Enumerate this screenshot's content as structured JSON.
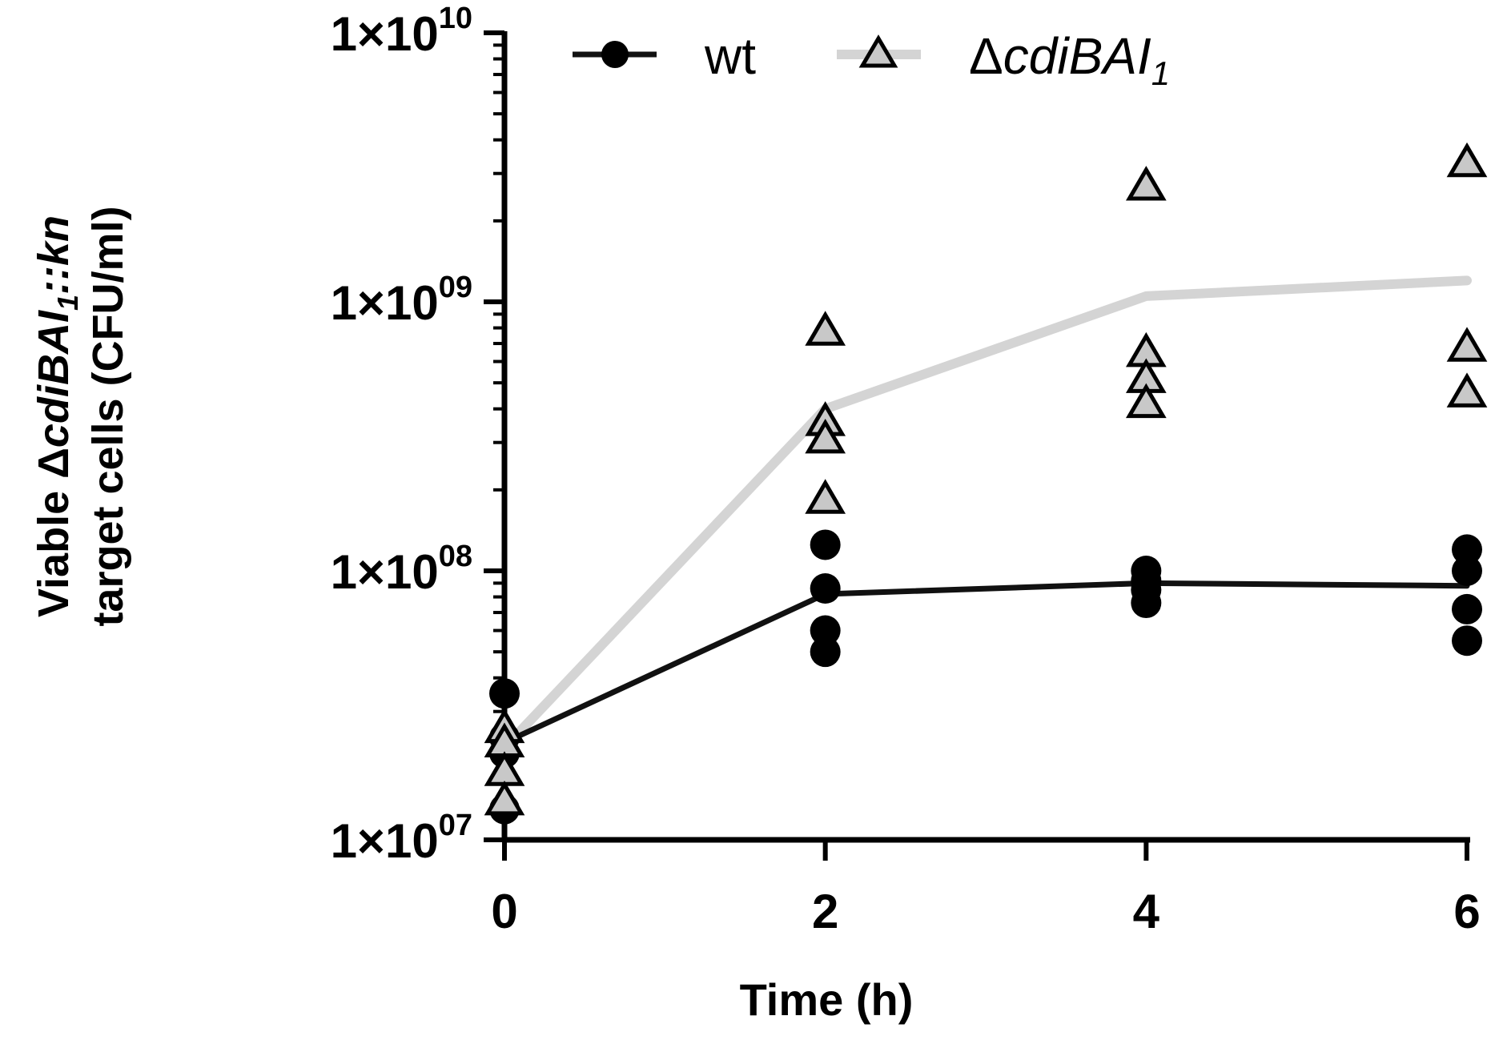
{
  "chart_data": {
    "type": "scatter",
    "y_scale": "log",
    "ylim": [
      10000000,
      10000000000
    ],
    "xlim": [
      0,
      6
    ],
    "x_ticks": [
      0,
      2,
      4,
      6
    ],
    "x_tick_labels": [
      "0",
      "2",
      "4",
      "6"
    ],
    "y_ticks": [
      10000000,
      100000000,
      1000000000,
      10000000000
    ],
    "y_tick_labels": [
      {
        "mantissa": "1×10",
        "exponent": "07"
      },
      {
        "mantissa": "1×10",
        "exponent": "08"
      },
      {
        "mantissa": "1×10",
        "exponent": "09"
      },
      {
        "mantissa": "1×10",
        "exponent": "10"
      }
    ],
    "xlabel": "Time (h)",
    "ylabel": {
      "line1_prefix": "Viable Δ",
      "line1_italic": "cdiBAI",
      "line1_sub": "1",
      "line1_italic2": "::kn",
      "line2": "target cells (CFU/ml)"
    },
    "legend_position": "top",
    "series": [
      {
        "name": "wt",
        "marker": "circle",
        "color": "#000000",
        "line_color": "#111111",
        "mean": [
          {
            "x": 0,
            "y": 23000000
          },
          {
            "x": 2,
            "y": 82000000
          },
          {
            "x": 4,
            "y": 90000000
          },
          {
            "x": 6,
            "y": 88000000
          }
        ],
        "points": [
          {
            "x": 0,
            "y": 35000000
          },
          {
            "x": 0,
            "y": 24000000
          },
          {
            "x": 0,
            "y": 21000000
          },
          {
            "x": 0,
            "y": 13000000
          },
          {
            "x": 2,
            "y": 125000000
          },
          {
            "x": 2,
            "y": 86000000
          },
          {
            "x": 2,
            "y": 60000000
          },
          {
            "x": 2,
            "y": 50000000
          },
          {
            "x": 4,
            "y": 100000000
          },
          {
            "x": 4,
            "y": 92000000
          },
          {
            "x": 4,
            "y": 85000000
          },
          {
            "x": 4,
            "y": 76000000
          },
          {
            "x": 6,
            "y": 120000000
          },
          {
            "x": 6,
            "y": 100000000
          },
          {
            "x": 6,
            "y": 72000000
          },
          {
            "x": 6,
            "y": 55000000
          }
        ]
      },
      {
        "name": "ΔcdiBAI1",
        "name_prefix": "Δ",
        "name_italic": "cdiBAI",
        "name_sub": "1",
        "marker": "triangle",
        "color": "#c8c8c8",
        "line_color": "#d4d4d4",
        "mean": [
          {
            "x": 0,
            "y": 22000000
          },
          {
            "x": 2,
            "y": 400000000
          },
          {
            "x": 4,
            "y": 1050000000
          },
          {
            "x": 6,
            "y": 1200000000
          }
        ],
        "points": [
          {
            "x": 0,
            "y": 26000000
          },
          {
            "x": 0,
            "y": 23000000
          },
          {
            "x": 0,
            "y": 18000000
          },
          {
            "x": 0,
            "y": 14000000
          },
          {
            "x": 2,
            "y": 780000000
          },
          {
            "x": 2,
            "y": 360000000
          },
          {
            "x": 2,
            "y": 310000000
          },
          {
            "x": 2,
            "y": 185000000
          },
          {
            "x": 4,
            "y": 2700000000
          },
          {
            "x": 4,
            "y": 650000000
          },
          {
            "x": 4,
            "y": 520000000
          },
          {
            "x": 4,
            "y": 420000000
          },
          {
            "x": 6,
            "y": 3300000000
          },
          {
            "x": 6,
            "y": 680000000
          },
          {
            "x": 6,
            "y": 460000000
          }
        ]
      }
    ]
  }
}
